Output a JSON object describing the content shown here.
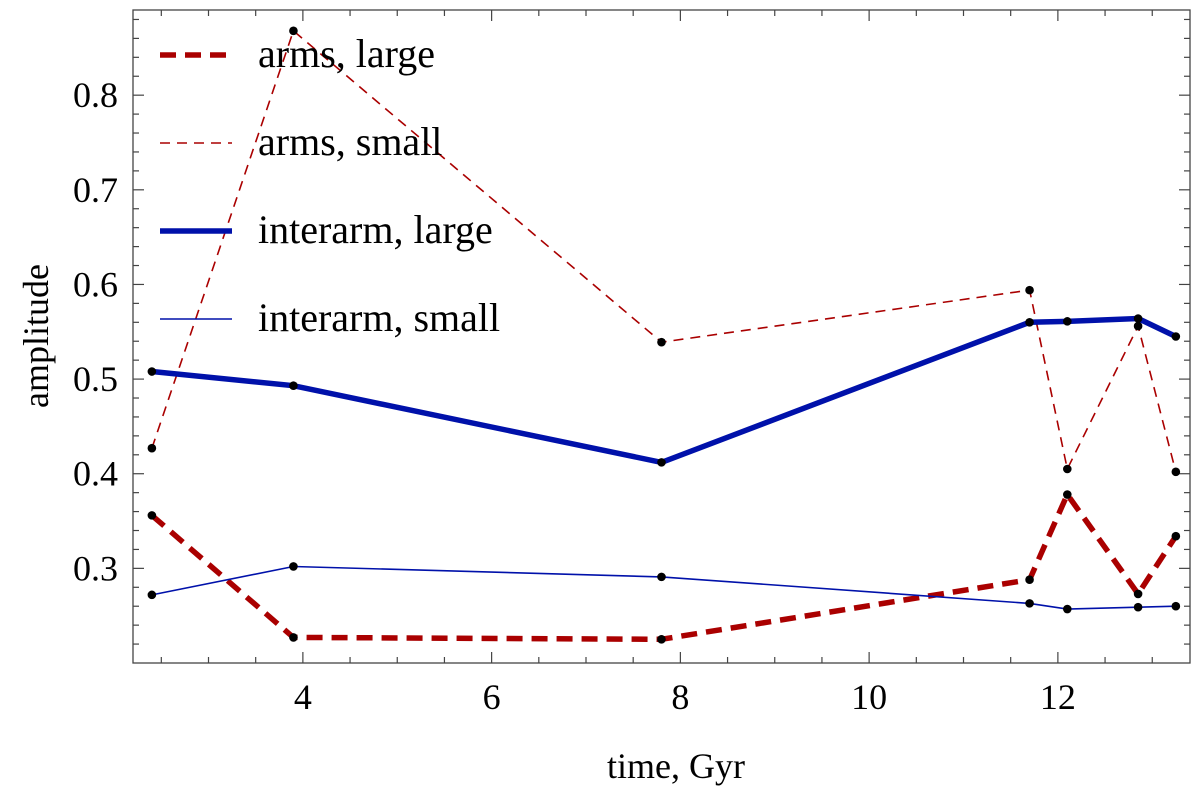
{
  "chart_data": {
    "type": "line",
    "title": "",
    "xlabel": "time, Gyr",
    "ylabel": "amplitude",
    "xlim": [
      2.2,
      13.4
    ],
    "ylim": [
      0.2,
      0.89
    ],
    "xticks": [
      4,
      6,
      8,
      10,
      12
    ],
    "yticks": [
      0.3,
      0.4,
      0.5,
      0.6,
      0.7,
      0.8
    ],
    "grid": false,
    "legend_position": "top-left",
    "x": [
      2.4,
      3.9,
      7.8,
      11.7,
      12.1,
      12.85,
      13.25
    ],
    "series": [
      {
        "name": "arms, large",
        "color": "#aa0000",
        "style": "thick-dashed",
        "values": [
          0.356,
          0.227,
          0.225,
          0.288,
          0.378,
          0.273,
          0.334
        ]
      },
      {
        "name": "arms, small",
        "color": "#aa0000",
        "style": "thin-dashed",
        "values": [
          0.427,
          0.868,
          0.539,
          0.594,
          0.405,
          0.556,
          0.402
        ]
      },
      {
        "name": "interarm, large",
        "color": "#0011aa",
        "style": "thick-solid",
        "values": [
          0.508,
          0.493,
          0.412,
          0.56,
          0.561,
          0.564,
          0.545
        ]
      },
      {
        "name": "interarm, small",
        "color": "#0011aa",
        "style": "thin-solid",
        "values": [
          0.272,
          0.302,
          0.291,
          0.263,
          0.257,
          0.259,
          0.26
        ]
      }
    ]
  }
}
